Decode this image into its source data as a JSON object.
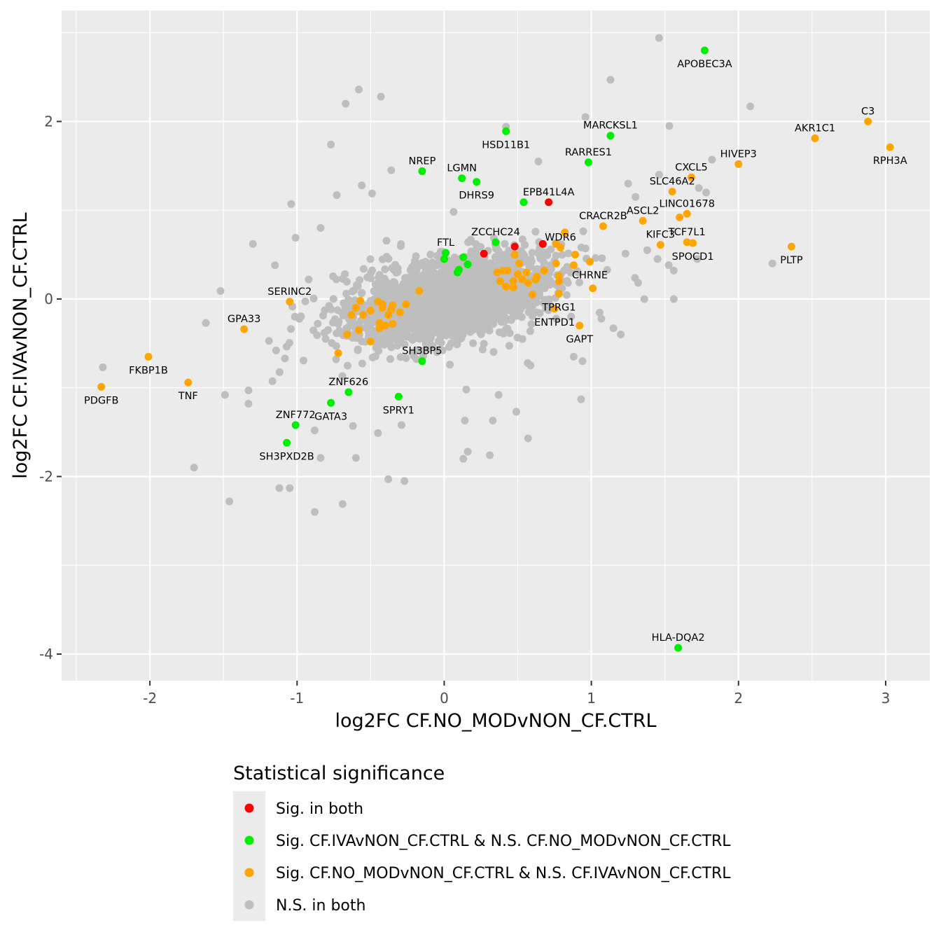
{
  "chart_data": {
    "type": "scatter",
    "title": "",
    "xlabel": "log2FC CF.NO_MODvNON_CF.CTRL",
    "ylabel": "log2FC CF.IVAvNON_CF.CTRL",
    "xlim": [
      -2.6,
      3.3
    ],
    "ylim": [
      -4.3,
      3.25
    ],
    "x_ticks": [
      -2,
      -1,
      0,
      1,
      2,
      3
    ],
    "x_tick_labels": [
      "-2",
      "-1",
      "0",
      "1",
      "2",
      "3"
    ],
    "y_ticks": [
      -4,
      -2,
      0,
      2
    ],
    "y_tick_labels": [
      "-4",
      "-2",
      "0",
      "2"
    ],
    "grid": true,
    "panel_background": "#ebebeb",
    "legend": {
      "title": "Statistical significance",
      "placement": "bottom",
      "entries": [
        {
          "key": "both",
          "label": "Sig. in both",
          "color": "#ff0000"
        },
        {
          "key": "iva",
          "label": "Sig. CF.IVAvNON_CF.CTRL & N.S. CF.NO_MODvNON_CF.CTRL",
          "color": "#00ee00"
        },
        {
          "key": "nomod",
          "label": "Sig. CF.NO_MODvNON_CF.CTRL & N.S. CF.IVAvNON_CF.CTRL",
          "color": "#ffa500"
        },
        {
          "key": "ns",
          "label": "N.S. in both",
          "color": "#bebebe"
        }
      ]
    },
    "series": [
      {
        "name": "Sig. in both",
        "color": "#ff0000",
        "points": [
          {
            "x": 0.71,
            "y": 1.09,
            "label": "EPB41L4A"
          },
          {
            "x": 0.48,
            "y": 0.59
          },
          {
            "x": 0.67,
            "y": 0.62
          },
          {
            "x": 0.27,
            "y": 0.51
          }
        ]
      },
      {
        "name": "Sig. CF.IVAvNON_CF.CTRL & N.S. CF.NO_MODvNON_CF.CTRL",
        "color": "#00ee00",
        "points": [
          {
            "x": 1.77,
            "y": 2.8,
            "label": "APOBEC3A"
          },
          {
            "x": 0.42,
            "y": 1.89,
            "label": "HSD11B1"
          },
          {
            "x": 1.13,
            "y": 1.84,
            "label": "MARCKSL1"
          },
          {
            "x": 0.98,
            "y": 1.54,
            "label": "RARRES1"
          },
          {
            "x": -0.15,
            "y": 1.44,
            "label": "NREP"
          },
          {
            "x": 0.12,
            "y": 1.36,
            "label": "LGMN"
          },
          {
            "x": 0.22,
            "y": 1.32,
            "label": "DHRS9"
          },
          {
            "x": 0.54,
            "y": 1.09
          },
          {
            "x": 0.35,
            "y": 0.64,
            "label": "ZCCHC24"
          },
          {
            "x": 0.01,
            "y": 0.52,
            "label": "FTL"
          },
          {
            "x": 0.0,
            "y": 0.45
          },
          {
            "x": 0.13,
            "y": 0.47
          },
          {
            "x": 0.16,
            "y": 0.39
          },
          {
            "x": 0.1,
            "y": 0.33
          },
          {
            "x": 0.09,
            "y": 0.3
          },
          {
            "x": -0.15,
            "y": -0.7,
            "label": "SH3BP5"
          },
          {
            "x": -0.65,
            "y": -1.05,
            "label": "ZNF626"
          },
          {
            "x": -0.31,
            "y": -1.1,
            "label": "SPRY1"
          },
          {
            "x": -0.77,
            "y": -1.17,
            "label": "GATA3"
          },
          {
            "x": -1.01,
            "y": -1.42,
            "label": "ZNF772"
          },
          {
            "x": -1.07,
            "y": -1.62,
            "label": "SH3PXD2B"
          },
          {
            "x": 1.59,
            "y": -3.93,
            "label": "HLA-DQA2"
          }
        ]
      },
      {
        "name": "Sig. CF.NO_MODvNON_CF.CTRL & N.S. CF.IVAvNON_CF.CTRL",
        "color": "#ffa500",
        "points": [
          {
            "x": 2.88,
            "y": 2.0,
            "label": "C3"
          },
          {
            "x": 2.52,
            "y": 1.81,
            "label": "AKR1C1"
          },
          {
            "x": 3.03,
            "y": 1.71,
            "label": "RPH3A"
          },
          {
            "x": 2.0,
            "y": 1.52,
            "label": "HIVEP3"
          },
          {
            "x": 1.68,
            "y": 1.37,
            "label": "CXCL5"
          },
          {
            "x": 1.55,
            "y": 1.21,
            "label": "SLC46A2"
          },
          {
            "x": 1.65,
            "y": 0.96,
            "label": "LINC01678"
          },
          {
            "x": 1.6,
            "y": 0.92
          },
          {
            "x": 1.35,
            "y": 0.88,
            "label": "ASCL2"
          },
          {
            "x": 1.08,
            "y": 0.82,
            "label": "CRACR2B"
          },
          {
            "x": 1.47,
            "y": 0.61,
            "label": "KIFC3"
          },
          {
            "x": 1.65,
            "y": 0.64,
            "label": "TCF7L1"
          },
          {
            "x": 1.69,
            "y": 0.63,
            "label": "SPOCD1"
          },
          {
            "x": 2.36,
            "y": 0.59,
            "label": "PLTP"
          },
          {
            "x": 0.82,
            "y": 0.75
          },
          {
            "x": 0.79,
            "y": 0.58,
            "label": "WDR6"
          },
          {
            "x": 0.76,
            "y": 0.62
          },
          {
            "x": 0.89,
            "y": 0.5
          },
          {
            "x": 0.99,
            "y": 0.42,
            "label": "CHRNE"
          },
          {
            "x": 0.88,
            "y": 0.38
          },
          {
            "x": 0.76,
            "y": 0.4
          },
          {
            "x": 0.68,
            "y": 0.32
          },
          {
            "x": 0.63,
            "y": 0.25
          },
          {
            "x": 0.78,
            "y": 0.26
          },
          {
            "x": 0.56,
            "y": 0.3
          },
          {
            "x": 0.5,
            "y": 0.28
          },
          {
            "x": 0.51,
            "y": 0.4
          },
          {
            "x": 0.48,
            "y": 0.5
          },
          {
            "x": 0.43,
            "y": 0.32
          },
          {
            "x": 0.4,
            "y": 0.32
          },
          {
            "x": 0.36,
            "y": 0.3
          },
          {
            "x": 0.38,
            "y": 0.2
          },
          {
            "x": 0.42,
            "y": 0.14
          },
          {
            "x": 0.47,
            "y": 0.2
          },
          {
            "x": 0.53,
            "y": 0.22
          },
          {
            "x": 0.57,
            "y": 0.18
          },
          {
            "x": 0.62,
            "y": 0.22
          },
          {
            "x": 0.47,
            "y": 0.13
          },
          {
            "x": 0.6,
            "y": 0.05
          },
          {
            "x": 0.78,
            "y": 0.2
          },
          {
            "x": 1.01,
            "y": 0.12
          },
          {
            "x": 0.78,
            "y": 0.06,
            "label": "TPRG1"
          },
          {
            "x": 0.75,
            "y": -0.11,
            "label": "ENTPD1"
          },
          {
            "x": 0.92,
            "y": -0.3,
            "label": "GAPT"
          },
          {
            "x": -0.57,
            "y": -0.02
          },
          {
            "x": -0.45,
            "y": -0.03
          },
          {
            "x": -0.42,
            "y": -0.06
          },
          {
            "x": -0.35,
            "y": -0.07
          },
          {
            "x": -0.36,
            "y": -0.12
          },
          {
            "x": -0.3,
            "y": -0.15
          },
          {
            "x": -0.38,
            "y": -0.18
          },
          {
            "x": -0.42,
            "y": -0.1
          },
          {
            "x": -0.26,
            "y": -0.06
          },
          {
            "x": -0.17,
            "y": 0.09
          },
          {
            "x": -0.35,
            "y": -0.28
          },
          {
            "x": -0.44,
            "y": -0.27
          },
          {
            "x": -0.44,
            "y": -0.33
          },
          {
            "x": -0.5,
            "y": -0.13
          },
          {
            "x": -0.55,
            "y": -0.18
          },
          {
            "x": -0.6,
            "y": -0.1
          },
          {
            "x": -0.58,
            "y": -0.35
          },
          {
            "x": -0.66,
            "y": -0.4
          },
          {
            "x": -0.5,
            "y": -0.48
          },
          {
            "x": -0.72,
            "y": -0.61
          },
          {
            "x": -0.4,
            "y": -0.3
          },
          {
            "x": -0.63,
            "y": -0.18
          },
          {
            "x": -1.05,
            "y": -0.03,
            "label": "SERINC2"
          },
          {
            "x": -1.36,
            "y": -0.34,
            "label": "GPA33"
          },
          {
            "x": -2.01,
            "y": -0.65,
            "label": "FKBP1B"
          },
          {
            "x": -2.33,
            "y": -0.99,
            "label": "PDGFB"
          },
          {
            "x": -1.74,
            "y": -0.94,
            "label": "TNF"
          }
        ]
      },
      {
        "name": "N.S. in both",
        "color": "#bebebe",
        "points": [
          {
            "x": 1.46,
            "y": 2.94
          },
          {
            "x": 1.13,
            "y": 2.47
          },
          {
            "x": -0.58,
            "y": 2.36
          },
          {
            "x": -0.43,
            "y": 2.28
          },
          {
            "x": -0.67,
            "y": 2.2
          },
          {
            "x": 2.08,
            "y": 2.17
          },
          {
            "x": 0.96,
            "y": 2.05
          },
          {
            "x": 1.53,
            "y": 1.95
          },
          {
            "x": 0.42,
            "y": 1.94
          },
          {
            "x": -0.77,
            "y": 1.74
          },
          {
            "x": 1.82,
            "y": 1.57
          },
          {
            "x": -0.36,
            "y": 1.45
          },
          {
            "x": 0.64,
            "y": 1.55
          },
          {
            "x": -1.04,
            "y": 1.07
          },
          {
            "x": -0.73,
            "y": 1.17
          },
          {
            "x": -0.56,
            "y": 1.28
          },
          {
            "x": -0.84,
            "y": 0.8
          },
          {
            "x": -1.3,
            "y": 0.62
          },
          {
            "x": -1.01,
            "y": 0.69
          },
          {
            "x": -1.15,
            "y": 0.38
          },
          {
            "x": -1.52,
            "y": 0.09
          },
          {
            "x": -1.62,
            "y": -0.27
          },
          {
            "x": -2.32,
            "y": -0.77
          },
          {
            "x": -1.49,
            "y": -1.08
          },
          {
            "x": -1.33,
            "y": -1.18
          },
          {
            "x": -1.33,
            "y": -1.03
          },
          {
            "x": -1.7,
            "y": -1.9
          },
          {
            "x": -1.46,
            "y": -2.28
          },
          {
            "x": -1.12,
            "y": -2.13
          },
          {
            "x": -1.05,
            "y": -2.13
          },
          {
            "x": -0.88,
            "y": -2.4
          },
          {
            "x": -0.69,
            "y": -2.31
          },
          {
            "x": -0.38,
            "y": -2.03
          },
          {
            "x": -0.27,
            "y": -2.05
          },
          {
            "x": 0.13,
            "y": -1.8
          },
          {
            "x": 0.16,
            "y": -1.72
          },
          {
            "x": 0.31,
            "y": -1.76
          },
          {
            "x": 0.57,
            "y": -1.57
          },
          {
            "x": 0.14,
            "y": -1.37
          },
          {
            "x": 0.33,
            "y": -1.37
          },
          {
            "x": 0.49,
            "y": -1.27
          },
          {
            "x": 0.93,
            "y": -1.13
          },
          {
            "x": 0.15,
            "y": -1.02
          },
          {
            "x": 0.37,
            "y": -1.08
          },
          {
            "x": -0.6,
            "y": -1.79
          },
          {
            "x": -0.84,
            "y": -1.79
          },
          {
            "x": -0.88,
            "y": -1.48
          },
          {
            "x": -0.62,
            "y": -1.43
          },
          {
            "x": -0.45,
            "y": -1.51
          },
          {
            "x": -0.29,
            "y": -1.42
          },
          {
            "x": 1.56,
            "y": 0.32
          },
          {
            "x": 1.56,
            "y": 0.0
          },
          {
            "x": 1.36,
            "y": 0.0
          },
          {
            "x": 2.23,
            "y": 0.4
          },
          {
            "x": 1.15,
            "y": -0.33
          },
          {
            "x": 1.2,
            "y": -0.4
          },
          {
            "x": 0.94,
            "y": -0.7
          },
          {
            "x": 0.88,
            "y": -0.65
          },
          {
            "x": 1.46,
            "y": 1.4
          },
          {
            "x": 1.78,
            "y": 1.2
          },
          {
            "x": 1.25,
            "y": 1.3
          },
          {
            "x": 1.73,
            "y": 1.25
          },
          {
            "x": 1.3,
            "y": 1.15
          },
          {
            "x": 1.45,
            "y": 0.45
          },
          {
            "x": 1.72,
            "y": 0.45
          },
          {
            "x": 1.38,
            "y": 0.55
          }
        ]
      }
    ],
    "background_cloud": {
      "color": "#bebebe",
      "count": 2600,
      "center": [
        0.05,
        0.0
      ],
      "sd_major": 0.33,
      "sd_minor": 0.18,
      "slope": 0.55
    }
  }
}
